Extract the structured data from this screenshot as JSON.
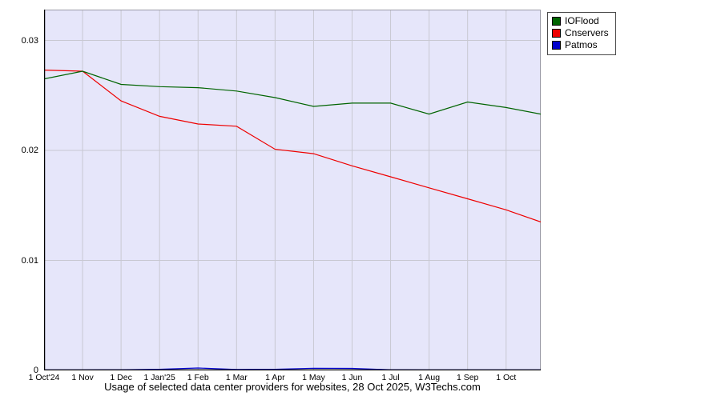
{
  "title": "Usage of selected data center providers for websites, 28 Oct 2025, W3Techs.com",
  "chart_data": {
    "type": "line",
    "title": "Usage of selected data center providers for websites, 28 Oct 2025, W3Techs.com",
    "x_tick_labels": [
      "1 Oct'24",
      "1 Nov",
      "1 Dec",
      "1 Jan'25",
      "1 Feb",
      "1 Mar",
      "1 Apr",
      "1 May",
      "1 Jun",
      "1 Jul",
      "1 Aug",
      "1 Sep",
      "1 Oct"
    ],
    "x": [
      0,
      1,
      2,
      3,
      4,
      5,
      6,
      7,
      8,
      9,
      10,
      11,
      12,
      12.9
    ],
    "months_total": 12.9,
    "y_tick_values": [
      0,
      0.01,
      0.02,
      0.03
    ],
    "y_tick_labels": [
      "0",
      "0.01",
      "0.02",
      "0.03"
    ],
    "ylim": [
      0,
      0.0328
    ],
    "grid": true,
    "legend_position": "top-right",
    "series": [
      {
        "name": "IOFlood",
        "color": "#006400",
        "values": [
          0.0265,
          0.0272,
          0.026,
          0.0258,
          0.0257,
          0.0254,
          0.0248,
          0.024,
          0.0243,
          0.0243,
          0.0233,
          0.0244,
          0.0239,
          0.0233
        ]
      },
      {
        "name": "Cnservers",
        "color": "#ee0000",
        "values": [
          0.0273,
          0.0272,
          0.0245,
          0.0231,
          0.0224,
          0.0222,
          0.0201,
          0.0197,
          0.0186,
          0.0176,
          0.0166,
          0.0156,
          0.0146,
          0.0135
        ]
      },
      {
        "name": "Patmos",
        "color": "#0000cc",
        "values": [
          5e-05,
          5e-05,
          6e-05,
          0.0001,
          0.00022,
          8e-05,
          0.0001,
          0.0002,
          0.00018,
          6e-05,
          5e-05,
          5e-05,
          5e-05,
          5e-05
        ]
      }
    ],
    "colors": {
      "plot_bg": "#e6e6fa",
      "grid": "#c8c8d2",
      "axis": "#000000",
      "border": "#9a9aa6"
    }
  }
}
